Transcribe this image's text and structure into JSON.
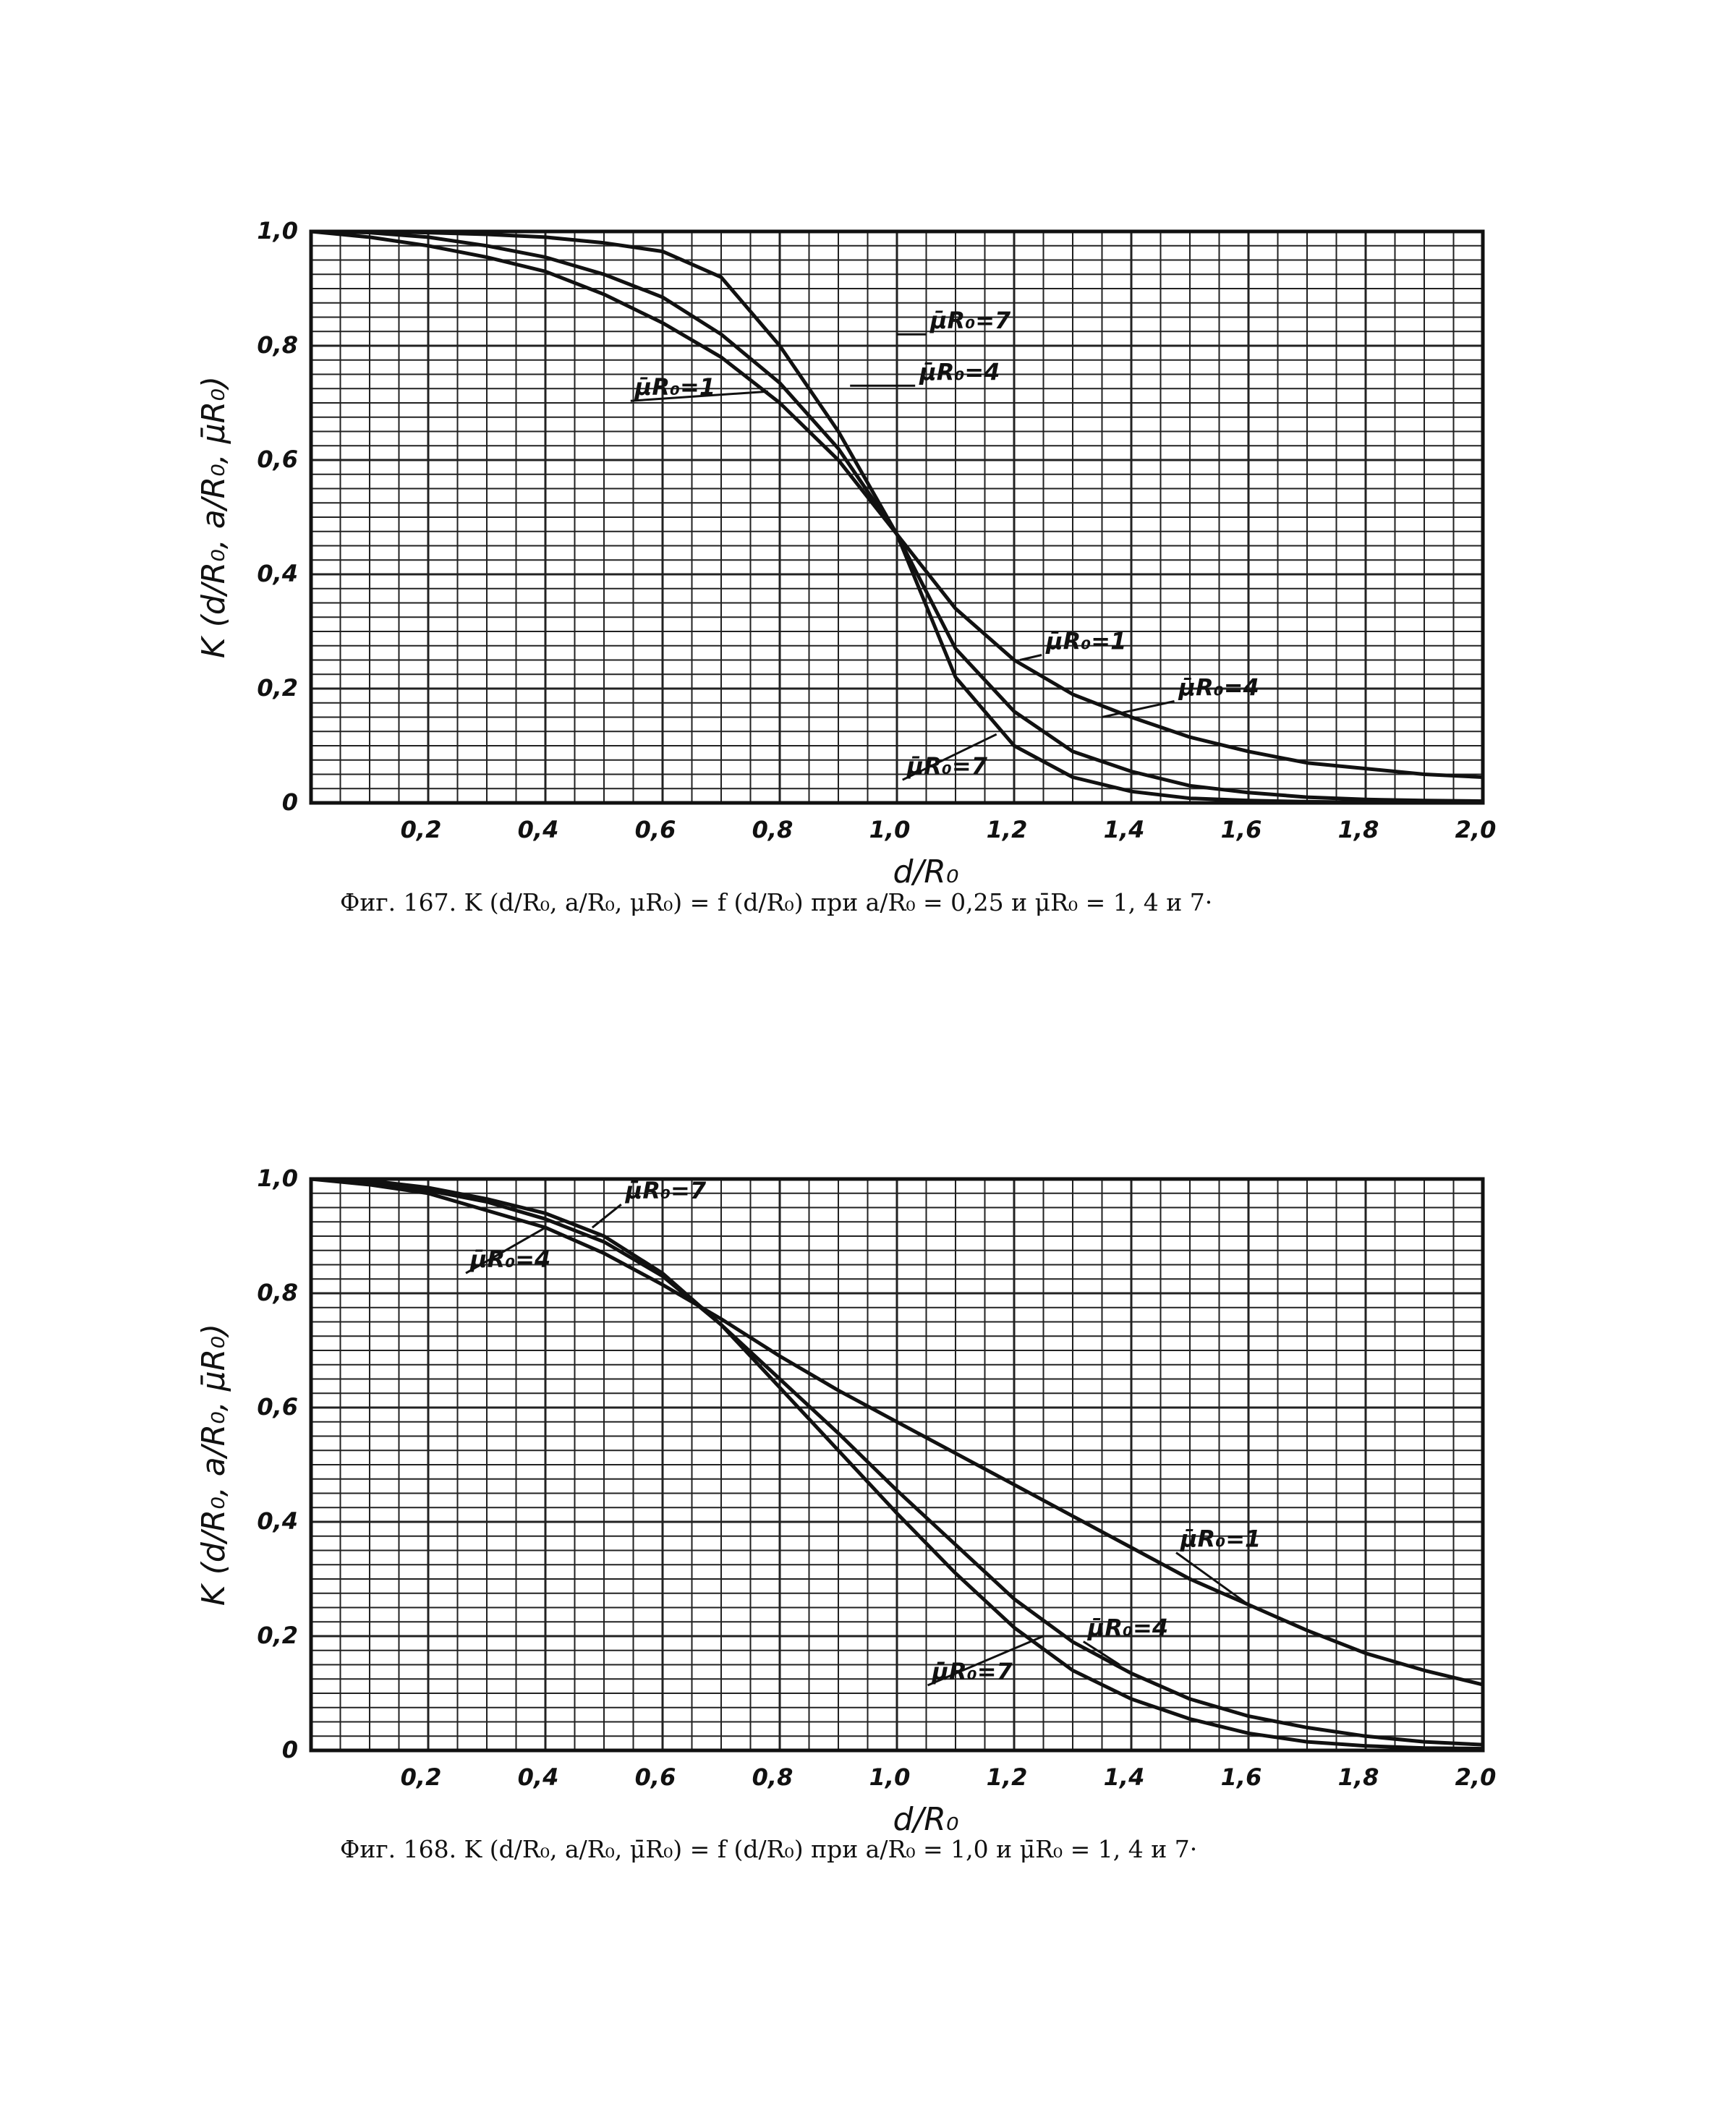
{
  "chart_data": [
    {
      "type": "line",
      "caption": "Фиг. 167. K (d/R₀, a/R₀, μR₀) = f (d/R₀) при a/R₀ = 0,25 и μ̄R₀ = 1, 4 и 7·",
      "xlabel": "d/R₀",
      "ylabel": "K (d/R₀, a/R₀, μ̄R₀)",
      "xlim": [
        0,
        2.0
      ],
      "ylim": [
        0,
        1.0
      ],
      "x_ticks": [
        "0,2",
        "0,4",
        "0,6",
        "0,8",
        "1,0",
        "1,2",
        "1,4",
        "1,6",
        "1,8",
        "2,0"
      ],
      "y_ticks": [
        "0",
        "0,2",
        "0,4",
        "0,6",
        "0,8",
        "1,0"
      ],
      "grid": true,
      "series": [
        {
          "name": "μ̄R₀=1",
          "x": [
            0,
            0.1,
            0.2,
            0.3,
            0.4,
            0.5,
            0.6,
            0.7,
            0.8,
            0.9,
            1.0,
            1.1,
            1.2,
            1.3,
            1.4,
            1.5,
            1.6,
            1.7,
            1.8,
            1.9,
            2.0
          ],
          "y": [
            1.0,
            0.99,
            0.975,
            0.955,
            0.93,
            0.89,
            0.84,
            0.78,
            0.7,
            0.6,
            0.47,
            0.34,
            0.25,
            0.19,
            0.15,
            0.115,
            0.09,
            0.07,
            0.06,
            0.05,
            0.045
          ]
        },
        {
          "name": "μ̄R₀=4",
          "x": [
            0,
            0.1,
            0.2,
            0.3,
            0.4,
            0.5,
            0.6,
            0.7,
            0.8,
            0.9,
            1.0,
            1.1,
            1.2,
            1.3,
            1.4,
            1.5,
            1.6,
            1.7,
            1.8,
            1.9,
            2.0
          ],
          "y": [
            1.0,
            0.998,
            0.99,
            0.975,
            0.955,
            0.925,
            0.885,
            0.82,
            0.735,
            0.62,
            0.47,
            0.27,
            0.16,
            0.09,
            0.055,
            0.03,
            0.018,
            0.01,
            0.006,
            0.004,
            0.003
          ]
        },
        {
          "name": "μ̄R₀=7",
          "x": [
            0,
            0.1,
            0.2,
            0.3,
            0.4,
            0.5,
            0.6,
            0.7,
            0.8,
            0.9,
            1.0,
            1.1,
            1.2,
            1.3,
            1.4,
            1.5,
            1.6,
            1.7,
            1.8,
            1.9,
            2.0
          ],
          "y": [
            1.0,
            1.0,
            0.998,
            0.995,
            0.99,
            0.98,
            0.965,
            0.92,
            0.8,
            0.65,
            0.47,
            0.22,
            0.1,
            0.045,
            0.02,
            0.008,
            0.004,
            0.002,
            0.001,
            0.0005,
            0.0
          ]
        }
      ],
      "curve_labels": [
        "μ̄R₀=7",
        "μ̄R₀=4",
        "μ̄R₀=1",
        "μ̄R₀=1",
        "μ̄R₀=4",
        "μ̄R₀=7"
      ]
    },
    {
      "type": "line",
      "caption": "Фиг. 168. K (d/R₀, a/R₀, μ̄R₀) = f (d/R₀) при a/R₀ = 1,0 и μ̄R₀ = 1, 4 и 7·",
      "xlabel": "d/R₀",
      "ylabel": "K (d/R₀, a/R₀, μ̄R₀)",
      "xlim": [
        0,
        2.0
      ],
      "ylim": [
        0,
        1.0
      ],
      "x_ticks": [
        "0,2",
        "0,4",
        "0,6",
        "0,8",
        "1,0",
        "1,2",
        "1,4",
        "1,6",
        "1,8",
        "2,0"
      ],
      "y_ticks": [
        "0",
        "0,2",
        "0,4",
        "0,6",
        "0,8",
        "1,0"
      ],
      "grid": true,
      "series": [
        {
          "name": "μ̄R₀=1",
          "x": [
            0,
            0.1,
            0.2,
            0.3,
            0.4,
            0.5,
            0.6,
            0.7,
            0.8,
            0.9,
            1.0,
            1.1,
            1.2,
            1.3,
            1.4,
            1.5,
            1.6,
            1.7,
            1.8,
            1.9,
            2.0
          ],
          "y": [
            1.0,
            0.99,
            0.975,
            0.945,
            0.915,
            0.87,
            0.815,
            0.755,
            0.69,
            0.63,
            0.575,
            0.52,
            0.465,
            0.41,
            0.355,
            0.3,
            0.255,
            0.21,
            0.17,
            0.14,
            0.115
          ]
        },
        {
          "name": "μ̄R₀=4",
          "x": [
            0,
            0.1,
            0.2,
            0.3,
            0.4,
            0.5,
            0.6,
            0.7,
            0.8,
            0.9,
            1.0,
            1.1,
            1.2,
            1.3,
            1.4,
            1.5,
            1.6,
            1.7,
            1.8,
            1.9,
            2.0
          ],
          "y": [
            1.0,
            0.995,
            0.98,
            0.96,
            0.93,
            0.89,
            0.83,
            0.745,
            0.65,
            0.555,
            0.455,
            0.36,
            0.265,
            0.19,
            0.135,
            0.09,
            0.06,
            0.04,
            0.025,
            0.015,
            0.01
          ]
        },
        {
          "name": "μ̄R₀=7",
          "x": [
            0,
            0.1,
            0.2,
            0.3,
            0.4,
            0.5,
            0.6,
            0.7,
            0.8,
            0.9,
            1.0,
            1.1,
            1.2,
            1.3,
            1.4,
            1.5,
            1.6,
            1.7,
            1.8,
            1.9,
            2.0
          ],
          "y": [
            1.0,
            0.997,
            0.985,
            0.965,
            0.94,
            0.9,
            0.835,
            0.745,
            0.635,
            0.525,
            0.415,
            0.31,
            0.215,
            0.14,
            0.09,
            0.055,
            0.03,
            0.015,
            0.008,
            0.004,
            0.003
          ]
        }
      ],
      "curve_labels": [
        "μ̄R₀=7",
        "μ̄R₀=4",
        "μ̄R₀=1",
        "μ̄R₀=4",
        "μ̄R₀=7"
      ]
    }
  ]
}
